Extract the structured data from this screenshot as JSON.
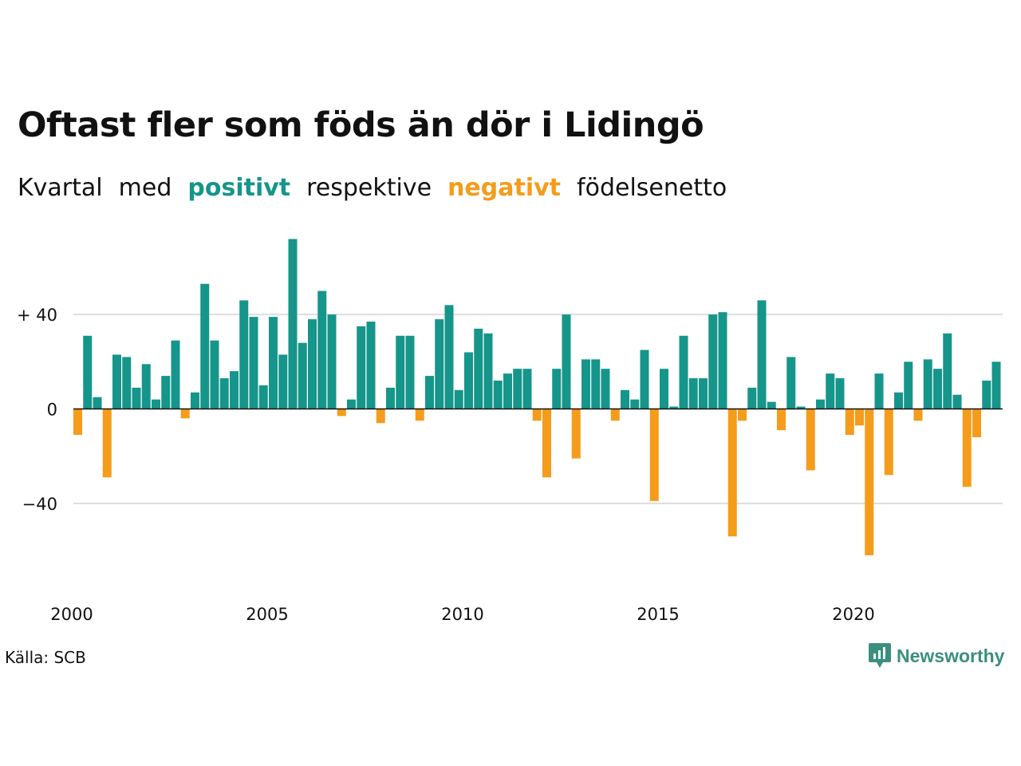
{
  "title": "Oftast fler som föds än dör i Lidingö",
  "subtitle": {
    "w1": "Kvartal",
    "w2": "med",
    "positive": "positivt",
    "w4": "respektive",
    "negative": "negativt",
    "w6": "födelsenetto"
  },
  "colors": {
    "positive": "#16958a",
    "negative": "#f59c1a",
    "grid": "#dddddd"
  },
  "source": "Källa: SCB",
  "brand": {
    "name": "Newsworthy",
    "icon": "newsworthy-logo-icon"
  },
  "chart_data": {
    "type": "bar",
    "x_start": "2000 Q1",
    "x_ticks": [
      "2000",
      "2005",
      "2010",
      "2015",
      "2020"
    ],
    "y_ticks": [
      {
        "value": 40,
        "label": "+ 40"
      },
      {
        "value": 0,
        "label": "0"
      },
      {
        "value": -40,
        "label": "−40"
      }
    ],
    "ylim": [
      -62,
      72
    ],
    "values": [
      -11,
      31,
      5,
      -29,
      23,
      22,
      9,
      19,
      4,
      14,
      29,
      -4,
      7,
      53,
      29,
      13,
      16,
      46,
      39,
      10,
      39,
      23,
      72,
      28,
      38,
      50,
      40,
      -3,
      4,
      35,
      37,
      -6,
      9,
      31,
      31,
      -5,
      14,
      38,
      44,
      8,
      24,
      34,
      32,
      12,
      15,
      17,
      17,
      -5,
      -29,
      17,
      40,
      -21,
      21,
      21,
      17,
      -5,
      8,
      4,
      25,
      -39,
      17,
      1,
      31,
      13,
      13,
      40,
      41,
      -54,
      -5,
      9,
      46,
      3,
      -9,
      22,
      1,
      -26,
      4,
      15,
      13,
      -11,
      -7,
      -62,
      15,
      -28,
      7,
      20,
      -5,
      21,
      17,
      32,
      6,
      -33,
      -12,
      12,
      20
    ]
  }
}
